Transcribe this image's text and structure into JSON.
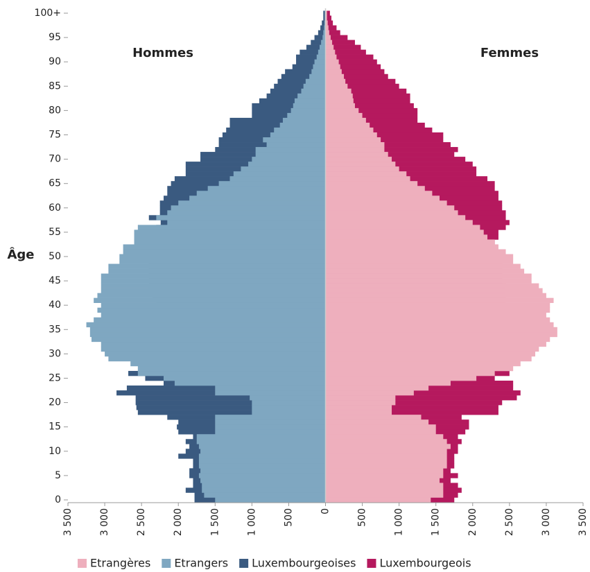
{
  "chart_data": {
    "type": "pyramid",
    "y_label": "Âge",
    "left_label": "Hommes",
    "right_label": "Femmes",
    "categories": [
      "0",
      null,
      null,
      null,
      null,
      "5",
      null,
      null,
      null,
      null,
      "10",
      null,
      null,
      null,
      null,
      "15",
      null,
      null,
      null,
      null,
      "20",
      null,
      null,
      null,
      null,
      "25",
      null,
      null,
      null,
      null,
      "30",
      null,
      null,
      null,
      null,
      "35",
      null,
      null,
      null,
      null,
      "40",
      null,
      null,
      null,
      null,
      "45",
      null,
      null,
      null,
      null,
      "50",
      null,
      null,
      null,
      null,
      "55",
      null,
      null,
      null,
      null,
      "60",
      null,
      null,
      null,
      null,
      "65",
      null,
      null,
      null,
      null,
      "70",
      null,
      null,
      null,
      null,
      "75",
      null,
      null,
      null,
      null,
      "80",
      null,
      null,
      null,
      null,
      "85",
      null,
      null,
      null,
      null,
      "90",
      null,
      null,
      null,
      null,
      "95",
      null,
      null,
      null,
      null,
      "100+"
    ],
    "xlim": [
      -3500,
      3500
    ],
    "xticks": [
      {
        "value": -3500,
        "label": "3 500"
      },
      {
        "value": -3000,
        "label": "3 000"
      },
      {
        "value": -2500,
        "label": "2 500"
      },
      {
        "value": -2000,
        "label": "2 000"
      },
      {
        "value": -1500,
        "label": "1 500"
      },
      {
        "value": -1000,
        "label": "1 000"
      },
      {
        "value": -500,
        "label": "500"
      },
      0,
      500,
      {
        "value": 1000,
        "label": "1 000"
      },
      {
        "value": 1500,
        "label": "1 500"
      },
      {
        "value": 2000,
        "label": "2 000"
      },
      {
        "value": 2500,
        "label": "2 500"
      },
      {
        "value": 3000,
        "label": "3 000"
      },
      {
        "value": 3500,
        "label": "3 500"
      }
    ],
    "series": [
      {
        "name": "Etrangères",
        "color": "#eeafbd",
        "side": "right",
        "values": [
          1430,
          1600,
          1600,
          1600,
          1550,
          1600,
          1600,
          1650,
          1650,
          1650,
          1650,
          1700,
          1650,
          1600,
          1500,
          1500,
          1400,
          1300,
          900,
          900,
          950,
          950,
          1200,
          1400,
          1700,
          2050,
          2300,
          2550,
          2650,
          2800,
          2850,
          2900,
          3000,
          3050,
          3150,
          3150,
          3100,
          3050,
          3000,
          3050,
          3050,
          3100,
          3000,
          2950,
          2900,
          2800,
          2800,
          2700,
          2650,
          2550,
          2550,
          2450,
          2350,
          2300,
          2200,
          2150,
          2100,
          2000,
          1900,
          1800,
          1750,
          1650,
          1550,
          1450,
          1350,
          1250,
          1150,
          1100,
          1000,
          950,
          900,
          850,
          800,
          800,
          750,
          700,
          650,
          600,
          550,
          500,
          450,
          400,
          380,
          370,
          350,
          300,
          270,
          250,
          220,
          200,
          180,
          150,
          130,
          110,
          90,
          70,
          50,
          40,
          30,
          20,
          20
        ]
      },
      {
        "name": "Etrangers",
        "color": "#7fa7c1",
        "side": "left",
        "values": [
          1500,
          1650,
          1680,
          1680,
          1700,
          1720,
          1700,
          1720,
          1720,
          1720,
          1700,
          1720,
          1750,
          1750,
          1500,
          1500,
          1500,
          1500,
          1000,
          1000,
          1000,
          1030,
          1500,
          1500,
          2050,
          2200,
          2550,
          2550,
          2650,
          2950,
          3000,
          3050,
          3050,
          3180,
          3200,
          3200,
          3250,
          3150,
          3050,
          3100,
          3050,
          3150,
          3100,
          3050,
          3050,
          3050,
          3050,
          2950,
          2950,
          2800,
          2800,
          2750,
          2750,
          2600,
          2600,
          2600,
          2550,
          2150,
          2300,
          2150,
          2100,
          2000,
          1850,
          1750,
          1600,
          1450,
          1300,
          1250,
          1150,
          1050,
          1000,
          950,
          950,
          800,
          850,
          750,
          700,
          620,
          580,
          520,
          470,
          440,
          420,
          380,
          330,
          300,
          270,
          220,
          190,
          170,
          150,
          120,
          100,
          80,
          60,
          40,
          30,
          20,
          15,
          10,
          10
        ]
      },
      {
        "name": "Luxembourgeoises",
        "color": "#3a5a80",
        "side": "left",
        "values": [
          1780,
          1780,
          1900,
          1800,
          1800,
          1850,
          1850,
          1800,
          1800,
          2000,
          1900,
          1850,
          1900,
          1800,
          2000,
          2020,
          2000,
          2150,
          2550,
          2570,
          2580,
          2580,
          2840,
          2700,
          2200,
          2450,
          2680,
          2500,
          2400,
          2400,
          2300,
          2200,
          2200,
          2150,
          2150,
          2200,
          2200,
          2250,
          2250,
          2300,
          2300,
          2300,
          2350,
          2350,
          2400,
          2400,
          2400,
          2400,
          2400,
          2400,
          2400,
          2350,
          2350,
          2350,
          2300,
          2300,
          2300,
          2240,
          2400,
          2250,
          2250,
          2250,
          2200,
          2150,
          2150,
          2100,
          2050,
          1900,
          1900,
          1900,
          1700,
          1700,
          1500,
          1450,
          1450,
          1400,
          1350,
          1300,
          1300,
          1000,
          1000,
          1000,
          900,
          800,
          750,
          700,
          650,
          600,
          550,
          450,
          400,
          400,
          350,
          260,
          200,
          150,
          100,
          70,
          50,
          30,
          30
        ]
      },
      {
        "name": "Luxembourgeois",
        "color": "#b5195e",
        "side": "right",
        "values": [
          1750,
          1800,
          1850,
          1800,
          1700,
          1800,
          1700,
          1750,
          1750,
          1750,
          1800,
          1800,
          1850,
          1800,
          1900,
          1950,
          1950,
          1850,
          2350,
          2350,
          2400,
          2600,
          2650,
          2550,
          2550,
          2300,
          2500,
          2500,
          2400,
          2300,
          2300,
          2300,
          2300,
          2300,
          2350,
          2350,
          2350,
          2400,
          2400,
          2400,
          2450,
          2450,
          2450,
          2450,
          2450,
          2400,
          2400,
          2400,
          2400,
          2350,
          2350,
          2300,
          2300,
          2300,
          2350,
          2350,
          2450,
          2500,
          2450,
          2450,
          2400,
          2400,
          2350,
          2350,
          2300,
          2300,
          2200,
          2050,
          2050,
          2000,
          1900,
          1750,
          1800,
          1700,
          1600,
          1600,
          1450,
          1350,
          1250,
          1250,
          1250,
          1200,
          1150,
          1150,
          1100,
          1000,
          950,
          850,
          800,
          750,
          700,
          650,
          550,
          480,
          400,
          300,
          200,
          150,
          100,
          80,
          60
        ]
      }
    ]
  }
}
